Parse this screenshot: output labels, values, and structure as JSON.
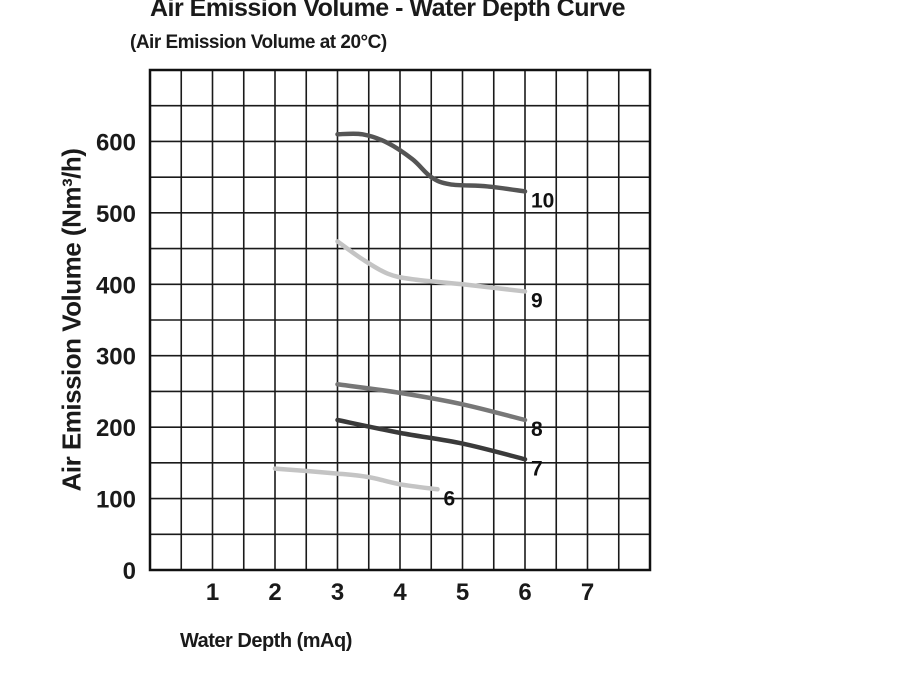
{
  "chart_data": {
    "type": "line",
    "title": "Air Emission Volume - Water Depth Curve",
    "subtitle": "(Air Emission Volume at 20°C)",
    "xlabel": "Water Depth (mAq)",
    "ylabel": "Air Emission Volume (Nm³/h)",
    "xlim": [
      0,
      8
    ],
    "ylim": [
      0,
      700
    ],
    "xticks": [
      1,
      2,
      3,
      4,
      5,
      6,
      7
    ],
    "yticks": [
      0,
      100,
      200,
      300,
      400,
      500,
      600
    ],
    "grid": true,
    "series": [
      {
        "name": "10",
        "color": "#555555",
        "points": [
          [
            3,
            610
          ],
          [
            3.4,
            610
          ],
          [
            3.8,
            598
          ],
          [
            4.2,
            575
          ],
          [
            4.5,
            550
          ],
          [
            4.8,
            540
          ],
          [
            5.4,
            537
          ],
          [
            6,
            530
          ]
        ]
      },
      {
        "name": "9",
        "color": "#c4c4c4",
        "points": [
          [
            3,
            460
          ],
          [
            3.4,
            435
          ],
          [
            3.8,
            415
          ],
          [
            4.2,
            407
          ],
          [
            5,
            400
          ],
          [
            6,
            390
          ]
        ]
      },
      {
        "name": "8",
        "color": "#777777",
        "points": [
          [
            3,
            260
          ],
          [
            4,
            248
          ],
          [
            5,
            232
          ],
          [
            6,
            210
          ]
        ]
      },
      {
        "name": "7",
        "color": "#3a3a3a",
        "points": [
          [
            3,
            210
          ],
          [
            4,
            192
          ],
          [
            5,
            177
          ],
          [
            6,
            155
          ]
        ]
      },
      {
        "name": "6",
        "color": "#c4c4c4",
        "points": [
          [
            2,
            142
          ],
          [
            3,
            135
          ],
          [
            3.5,
            130
          ],
          [
            4,
            120
          ],
          [
            4.6,
            113
          ]
        ]
      }
    ]
  }
}
